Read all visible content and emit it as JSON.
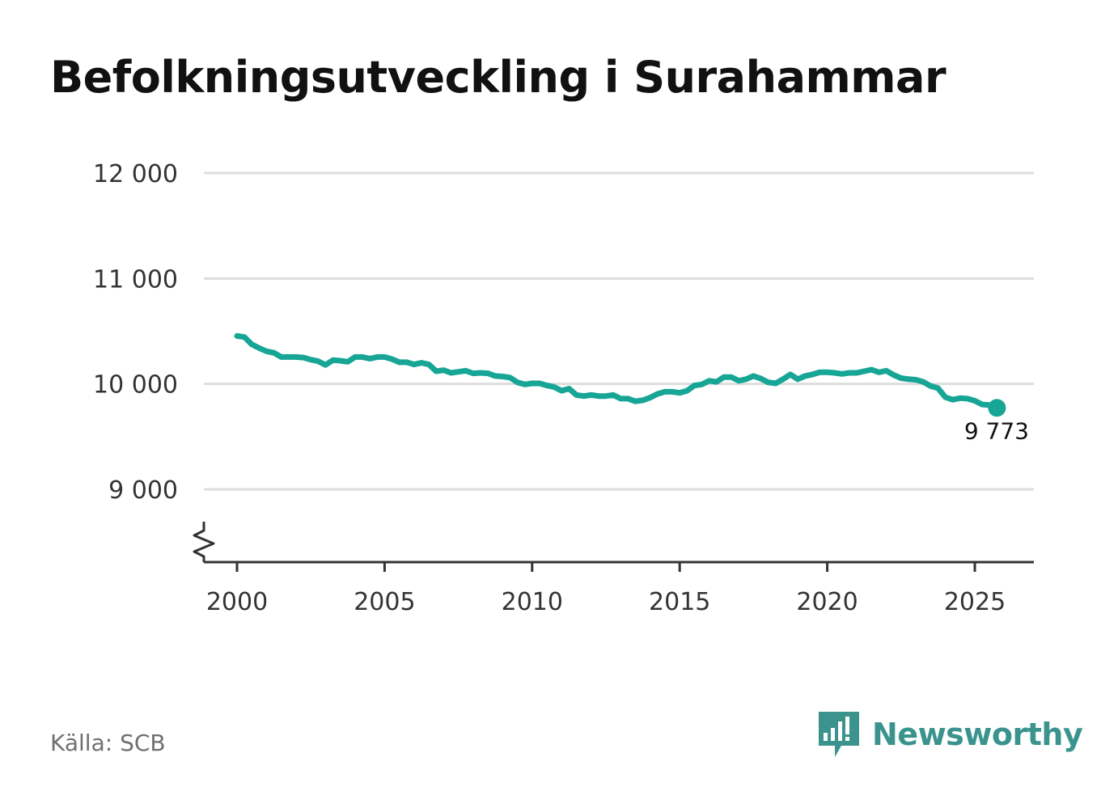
{
  "title": "Befolkningsutveckling i Surahammar",
  "source": "Källa: SCB",
  "brand": {
    "name": "Newsworthy",
    "icon": "newsworthy-logo-icon",
    "color": "#3a948d"
  },
  "colors": {
    "line": "#17a596",
    "grid": "#dddddd",
    "axis": "#333333"
  },
  "chart_data": {
    "type": "line",
    "title": "Befolkningsutveckling i Surahammar",
    "xlabel": "",
    "ylabel": "",
    "xlim": [
      1999,
      2027
    ],
    "ylim": [
      8350,
      12000
    ],
    "y_axis_break": true,
    "grid": true,
    "y_ticks": [
      9000,
      10000,
      11000,
      12000
    ],
    "y_tick_labels": [
      "9 000",
      "10 000",
      "11 000",
      "12 000"
    ],
    "x_ticks": [
      2000,
      2005,
      2010,
      2015,
      2020,
      2025
    ],
    "x_tick_labels": [
      "2000",
      "2005",
      "2010",
      "2015",
      "2020",
      "2025"
    ],
    "end_label": "9 773",
    "series": [
      {
        "x": [
          2000.0,
          2000.25,
          2000.5,
          2000.75,
          2001.0,
          2001.25,
          2001.5,
          2001.75,
          2002.0,
          2002.25,
          2002.5,
          2002.75,
          2003.0,
          2003.25,
          2003.5,
          2003.75,
          2004.0,
          2004.25,
          2004.5,
          2004.75,
          2005.0,
          2005.25,
          2005.5,
          2005.75,
          2006.0,
          2006.25,
          2006.5,
          2006.75,
          2007.0,
          2007.25,
          2007.5,
          2007.75,
          2008.0,
          2008.25,
          2008.5,
          2008.75,
          2009.0,
          2009.25,
          2009.5,
          2009.75,
          2010.0,
          2010.25,
          2010.5,
          2010.75,
          2011.0,
          2011.25,
          2011.5,
          2011.75,
          2012.0,
          2012.25,
          2012.5,
          2012.75,
          2013.0,
          2013.25,
          2013.5,
          2013.75,
          2014.0,
          2014.25,
          2014.5,
          2014.75,
          2015.0,
          2015.25,
          2015.5,
          2015.75,
          2016.0,
          2016.25,
          2016.5,
          2016.75,
          2017.0,
          2017.25,
          2017.5,
          2017.75,
          2018.0,
          2018.25,
          2018.5,
          2018.75,
          2019.0,
          2019.25,
          2019.5,
          2019.75,
          2020.0,
          2020.25,
          2020.5,
          2020.75,
          2021.0,
          2021.25,
          2021.5,
          2021.75,
          2022.0,
          2022.25,
          2022.5,
          2022.75,
          2023.0,
          2023.25,
          2023.5,
          2023.75,
          2024.0,
          2024.25,
          2024.5,
          2024.75,
          2025.0,
          2025.25,
          2025.5,
          2025.75
        ],
        "y": [
          10455,
          10445,
          10375,
          10340,
          10310,
          10295,
          10255,
          10255,
          10255,
          10250,
          10230,
          10215,
          10180,
          10225,
          10220,
          10210,
          10255,
          10255,
          10240,
          10255,
          10255,
          10235,
          10205,
          10205,
          10185,
          10200,
          10185,
          10120,
          10130,
          10105,
          10115,
          10125,
          10100,
          10105,
          10100,
          10075,
          10070,
          10060,
          10015,
          9995,
          10005,
          10005,
          9985,
          9970,
          9935,
          9955,
          9895,
          9885,
          9895,
          9885,
          9885,
          9895,
          9860,
          9860,
          9835,
          9845,
          9870,
          9905,
          9925,
          9925,
          9915,
          9935,
          9985,
          9995,
          10030,
          10020,
          10065,
          10065,
          10030,
          10045,
          10075,
          10050,
          10015,
          10005,
          10045,
          10090,
          10045,
          10075,
          10090,
          10110,
          10110,
          10105,
          10095,
          10105,
          10105,
          10120,
          10135,
          10110,
          10125,
          10085,
          10055,
          10045,
          10040,
          10020,
          9980,
          9960,
          9875,
          9850,
          9865,
          9860,
          9840,
          9805,
          9800,
          9773
        ]
      }
    ]
  }
}
